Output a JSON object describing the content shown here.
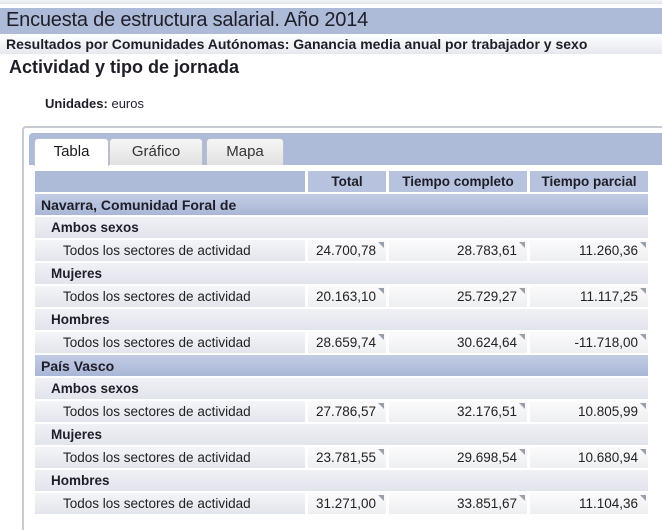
{
  "header": {
    "title": "Encuesta de estructura salarial. Año 2014",
    "subtitle": "Resultados por Comunidades Autónomas: Ganancia media anual por trabajador y sexo",
    "section_title": "Actividad y tipo de jornada"
  },
  "units": {
    "label": "Unidades:",
    "value": "euros"
  },
  "tabs": [
    {
      "label": "Tabla",
      "active": true
    },
    {
      "label": "Gráfico",
      "active": false
    },
    {
      "label": "Mapa",
      "active": false
    }
  ],
  "table": {
    "columns": [
      "Total",
      "Tiempo completo",
      "Tiempo parcial"
    ],
    "regions": [
      {
        "name": "Navarra, Comunidad Foral de",
        "groups": [
          {
            "sex": "Ambos sexos",
            "activity": "Todos los sectores de actividad",
            "values": [
              "24.700,78",
              "28.783,61",
              "11.260,36"
            ]
          },
          {
            "sex": "Mujeres",
            "activity": "Todos los sectores de actividad",
            "values": [
              "20.163,10",
              "25.729,27",
              "11.117,25"
            ]
          },
          {
            "sex": "Hombres",
            "activity": "Todos los sectores de actividad",
            "values": [
              "28.659,74",
              "30.624,64",
              "-11.718,00"
            ]
          }
        ]
      },
      {
        "name": "País Vasco",
        "groups": [
          {
            "sex": "Ambos sexos",
            "activity": "Todos los sectores de actividad",
            "values": [
              "27.786,57",
              "32.176,51",
              "10.805,99"
            ]
          },
          {
            "sex": "Mujeres",
            "activity": "Todos los sectores de actividad",
            "values": [
              "23.781,55",
              "29.698,54",
              "10.680,94"
            ]
          },
          {
            "sex": "Hombres",
            "activity": "Todos los sectores de actividad",
            "values": [
              "31.271,00",
              "33.851,67",
              "11.104,36"
            ]
          }
        ]
      }
    ]
  },
  "colors": {
    "header_blue": "#aebbd8",
    "column_header": "#b7c3de"
  }
}
